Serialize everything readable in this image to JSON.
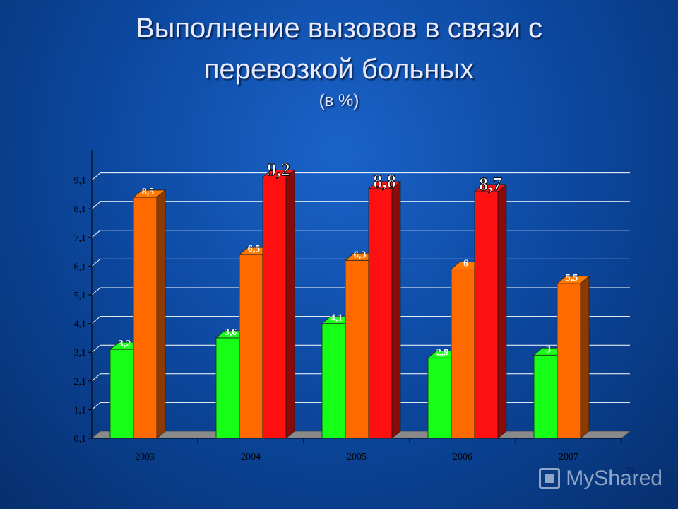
{
  "title": {
    "line1": "Выполнение вызовов в связи с",
    "line2": "перевозкой больных",
    "sub": "(в %)"
  },
  "page_number": "78",
  "watermark": {
    "text": "MyShared",
    "icon": "presentation-icon"
  },
  "colors": {
    "green": "#16ff16",
    "orange": "#ff6a00",
    "red": "#ff1010",
    "gridline": "#ffffff",
    "label": "#ffffff"
  },
  "chart_data": {
    "type": "bar",
    "categories": [
      "2003",
      "2004",
      "2005",
      "2006",
      "2007"
    ],
    "y_ticks": [
      "0,1",
      "1,1",
      "2,1",
      "3,1",
      "4,1",
      "5,1",
      "6,1",
      "7,1",
      "8,1",
      "9,1"
    ],
    "ylim": [
      0.1,
      10.1
    ],
    "grid": true,
    "series": [
      {
        "color": "#16ff16",
        "values": [
          3.2,
          3.6,
          4.1,
          2.9,
          3.0
        ],
        "labels": [
          "3,2",
          "3,6",
          "4,1",
          "2,9",
          "3"
        ]
      },
      {
        "color": "#ff6a00",
        "values": [
          8.5,
          6.5,
          6.3,
          6.0,
          5.5
        ],
        "labels": [
          "8,5",
          "6,5",
          "6,3",
          "6",
          "5,5"
        ]
      },
      {
        "color": "#ff1010",
        "values": [
          null,
          9.2,
          8.8,
          8.7,
          null
        ],
        "labels": [
          "",
          "9,2",
          "8,8",
          "8,7",
          ""
        ]
      }
    ]
  }
}
